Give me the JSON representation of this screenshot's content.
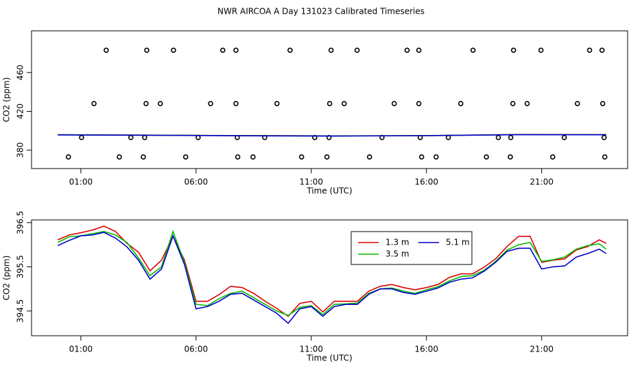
{
  "title": "NWR AIRCOA A  Day 131023  Calibrated Timeseries",
  "chart_data": [
    {
      "type": "scatter",
      "ylabel": "CO2 (ppm)",
      "xlabel": "Time (UTC)",
      "xlim": [
        -1.14,
        24.73
      ],
      "ylim": [
        361,
        503
      ],
      "xticks": [
        {
          "value": 1,
          "label": "01:00"
        },
        {
          "value": 6,
          "label": "06:00"
        },
        {
          "value": 11,
          "label": "11:00"
        },
        {
          "value": 16,
          "label": "16:00"
        },
        {
          "value": 21,
          "label": "21:00"
        }
      ],
      "yticks": [
        380,
        420,
        460
      ],
      "series": [
        {
          "style": "points",
          "color": "#000000",
          "x": [
            2.1,
            3.86,
            5.02,
            7.16,
            7.73,
            10.08,
            11.86,
            12.99,
            15.16,
            15.67,
            18.02,
            19.78,
            20.97,
            23.08,
            23.62,
            1.57,
            3.83,
            4.45,
            6.63,
            7.73,
            9.51,
            11.8,
            12.43,
            14.6,
            15.67,
            17.49,
            19.75,
            20.37,
            22.55,
            23.65,
            1.03,
            3.17,
            3.77,
            6.09,
            7.79,
            8.98,
            11.15,
            11.77,
            14.07,
            15.73,
            16.95,
            19.12,
            19.66,
            21.98,
            23.71,
            0.46,
            2.67,
            3.71,
            5.55,
            7.81,
            8.47,
            10.58,
            11.68,
            13.53,
            15.79,
            16.42,
            18.6,
            19.64,
            21.48,
            23.74
          ],
          "values": [
            483,
            483,
            483,
            483,
            483,
            483,
            483,
            483,
            483,
            483,
            483,
            483,
            483,
            483,
            483,
            428,
            428,
            428,
            428,
            428,
            428,
            428,
            428,
            428,
            428,
            428,
            428,
            428,
            428,
            428,
            393,
            393,
            393,
            393,
            393,
            393,
            393,
            393,
            393,
            393,
            393,
            393,
            393,
            393,
            393,
            373,
            373,
            373,
            373,
            373,
            373,
            373,
            373,
            373,
            373,
            373,
            373,
            373,
            373,
            373
          ]
        },
        {
          "style": "line",
          "color": "#dd0000",
          "x": [
            0,
            4,
            8,
            12,
            16,
            20,
            23.8
          ],
          "values": [
            395.9,
            395.5,
            395.0,
            394.7,
            395.0,
            396.1,
            396.0
          ]
        },
        {
          "style": "line",
          "color": "#00bb00",
          "x": [
            0,
            4,
            8,
            12,
            16,
            20,
            23.8
          ],
          "values": [
            395.8,
            395.4,
            394.9,
            394.6,
            394.9,
            396.0,
            395.9
          ]
        },
        {
          "style": "line",
          "color": "#0000cc",
          "x": [
            0,
            4,
            8,
            12,
            16,
            20,
            23.8
          ],
          "values": [
            395.7,
            395.3,
            394.8,
            394.5,
            394.9,
            395.9,
            395.8
          ]
        }
      ]
    },
    {
      "type": "line",
      "ylabel": "CO2 (ppm)",
      "xlabel": "Time (UTC)",
      "xlim": [
        -1.14,
        24.73
      ],
      "ylim": [
        393.94,
        396.56
      ],
      "xticks": [
        {
          "value": 1,
          "label": "01:00"
        },
        {
          "value": 6,
          "label": "06:00"
        },
        {
          "value": 11,
          "label": "11:00"
        },
        {
          "value": 16,
          "label": "16:00"
        },
        {
          "value": 21,
          "label": "21:00"
        }
      ],
      "yticks": [
        394.5,
        395.5,
        396.5
      ],
      "legend": true,
      "x": [
        0,
        0.5,
        1,
        1.5,
        2,
        2.5,
        3,
        3.5,
        4,
        4.5,
        5,
        5.5,
        6,
        6.5,
        7,
        7.5,
        8,
        8.5,
        9,
        9.5,
        10,
        10.5,
        11,
        11.5,
        12,
        12.5,
        13,
        13.5,
        14,
        14.5,
        15,
        15.5,
        16,
        16.5,
        17,
        17.5,
        18,
        18.5,
        19,
        19.5,
        20,
        20.5,
        21,
        21.5,
        22,
        22.5,
        23,
        23.5,
        23.8
      ],
      "series": [
        {
          "name": "1.3 m",
          "color": "#dd0000",
          "values": [
            396.11,
            396.22,
            396.27,
            396.33,
            396.42,
            396.3,
            396.03,
            395.83,
            395.41,
            395.65,
            396.19,
            395.65,
            394.72,
            394.72,
            394.87,
            395.06,
            395.03,
            394.9,
            394.72,
            394.56,
            394.38,
            394.67,
            394.72,
            394.48,
            394.72,
            394.72,
            394.72,
            394.95,
            395.06,
            395.1,
            395.03,
            394.98,
            395.03,
            395.1,
            395.26,
            395.34,
            395.34,
            395.49,
            395.68,
            395.96,
            396.19,
            396.19,
            395.6,
            395.65,
            395.68,
            395.88,
            395.96,
            396.11,
            396.03
          ]
        },
        {
          "name": "3.5 m",
          "color": "#00bb00",
          "values": [
            396.05,
            396.18,
            396.2,
            396.25,
            396.3,
            396.22,
            396.05,
            395.7,
            395.3,
            395.5,
            396.3,
            395.6,
            394.65,
            394.62,
            394.78,
            394.9,
            394.95,
            394.8,
            394.65,
            394.5,
            394.4,
            394.58,
            394.62,
            394.42,
            394.65,
            394.66,
            394.68,
            394.9,
            395.0,
            395.02,
            394.95,
            394.9,
            394.98,
            395.05,
            395.18,
            395.28,
            395.3,
            395.42,
            395.62,
            395.88,
            396.0,
            396.05,
            395.62,
            395.66,
            395.72,
            395.9,
            395.98,
            396.02,
            395.9
          ]
        },
        {
          "name": "5.1 m",
          "color": "#0000cc",
          "values": [
            395.98,
            396.1,
            396.2,
            396.22,
            396.28,
            396.15,
            395.95,
            395.65,
            395.22,
            395.45,
            396.2,
            395.55,
            394.55,
            394.6,
            394.72,
            394.88,
            394.9,
            394.75,
            394.6,
            394.45,
            394.22,
            394.55,
            394.6,
            394.38,
            394.6,
            394.65,
            394.65,
            394.88,
            395.0,
            395.0,
            394.92,
            394.88,
            394.95,
            395.02,
            395.15,
            395.22,
            395.25,
            395.4,
            395.6,
            395.85,
            395.92,
            395.92,
            395.45,
            395.5,
            395.52,
            395.72,
            395.8,
            395.9,
            395.8
          ]
        }
      ]
    }
  ]
}
